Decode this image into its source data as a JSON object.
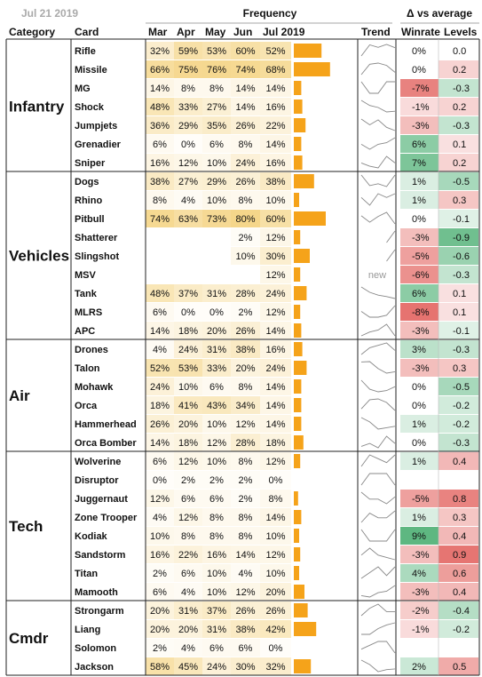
{
  "chart_data": {
    "type": "table",
    "date_label": "Jul 21 2019",
    "group_headers": {
      "frequency": "Frequency",
      "delta": "Δ vs average"
    },
    "columns": {
      "category": "Category",
      "card": "Card",
      "months": [
        "Mar",
        "Apr",
        "May",
        "Jun",
        "Jul 2019"
      ],
      "trend": "Trend",
      "winrate": "Winrate",
      "levels": "Levels"
    },
    "new_label": "new",
    "colors": {
      "bar": "#f5a31a",
      "freq_heat": "#f5d68a",
      "pos_delta": "#4caf73",
      "neg_delta": "#e0534f"
    },
    "groups": [
      {
        "category": "Infantry",
        "rows": [
          {
            "card": "Rifle",
            "freq": [
              "32%",
              "59%",
              "53%",
              "60%",
              "52%"
            ],
            "winrate": "0%",
            "levels": "0.0"
          },
          {
            "card": "Missile",
            "freq": [
              "66%",
              "75%",
              "76%",
              "74%",
              "68%"
            ],
            "winrate": "0%",
            "levels": "0.2"
          },
          {
            "card": "MG",
            "freq": [
              "14%",
              "8%",
              "8%",
              "14%",
              "14%"
            ],
            "winrate": "-7%",
            "levels": "-0.3"
          },
          {
            "card": "Shock",
            "freq": [
              "48%",
              "33%",
              "27%",
              "14%",
              "16%"
            ],
            "winrate": "-1%",
            "levels": "0.2"
          },
          {
            "card": "Jumpjets",
            "freq": [
              "36%",
              "29%",
              "35%",
              "26%",
              "22%"
            ],
            "winrate": "-3%",
            "levels": "-0.3"
          },
          {
            "card": "Grenadier",
            "freq": [
              "6%",
              "0%",
              "6%",
              "8%",
              "14%"
            ],
            "winrate": "6%",
            "levels": "0.1"
          },
          {
            "card": "Sniper",
            "freq": [
              "16%",
              "12%",
              "10%",
              "24%",
              "16%"
            ],
            "winrate": "7%",
            "levels": "0.2"
          }
        ]
      },
      {
        "category": "Vehicles",
        "rows": [
          {
            "card": "Dogs",
            "freq": [
              "38%",
              "27%",
              "29%",
              "26%",
              "38%"
            ],
            "winrate": "1%",
            "levels": "-0.5"
          },
          {
            "card": "Rhino",
            "freq": [
              "8%",
              "4%",
              "10%",
              "8%",
              "10%"
            ],
            "winrate": "1%",
            "levels": "0.3"
          },
          {
            "card": "Pitbull",
            "freq": [
              "74%",
              "63%",
              "73%",
              "80%",
              "60%"
            ],
            "winrate": "0%",
            "levels": "-0.1"
          },
          {
            "card": "Shatterer",
            "freq": [
              "",
              "",
              "",
              "2%",
              "12%"
            ],
            "winrate": "-3%",
            "levels": "-0.9"
          },
          {
            "card": "Slingshot",
            "freq": [
              "",
              "",
              "",
              "10%",
              "30%"
            ],
            "winrate": "-5%",
            "levels": "-0.6"
          },
          {
            "card": "MSV",
            "freq": [
              "",
              "",
              "",
              "",
              "12%"
            ],
            "winrate": "-6%",
            "levels": "-0.3",
            "is_new": true
          },
          {
            "card": "Tank",
            "freq": [
              "48%",
              "37%",
              "31%",
              "28%",
              "24%"
            ],
            "winrate": "6%",
            "levels": "0.1"
          },
          {
            "card": "MLRS",
            "freq": [
              "6%",
              "0%",
              "0%",
              "2%",
              "12%"
            ],
            "winrate": "-8%",
            "levels": "0.1"
          },
          {
            "card": "APC",
            "freq": [
              "14%",
              "18%",
              "20%",
              "26%",
              "14%"
            ],
            "winrate": "-3%",
            "levels": "-0.1"
          }
        ]
      },
      {
        "category": "Air",
        "rows": [
          {
            "card": "Drones",
            "freq": [
              "4%",
              "24%",
              "31%",
              "38%",
              "16%"
            ],
            "winrate": "3%",
            "levels": "-0.3"
          },
          {
            "card": "Talon",
            "freq": [
              "52%",
              "53%",
              "33%",
              "20%",
              "24%"
            ],
            "winrate": "-3%",
            "levels": "0.3"
          },
          {
            "card": "Mohawk",
            "freq": [
              "24%",
              "10%",
              "6%",
              "8%",
              "14%"
            ],
            "winrate": "0%",
            "levels": "-0.5"
          },
          {
            "card": "Orca",
            "freq": [
              "18%",
              "41%",
              "43%",
              "34%",
              "14%"
            ],
            "winrate": "0%",
            "levels": "-0.2"
          },
          {
            "card": "Hammerhead",
            "freq": [
              "26%",
              "20%",
              "10%",
              "12%",
              "14%"
            ],
            "winrate": "1%",
            "levels": "-0.2"
          },
          {
            "card": "Orca Bomber",
            "freq": [
              "14%",
              "18%",
              "12%",
              "28%",
              "18%"
            ],
            "winrate": "0%",
            "levels": "-0.3"
          }
        ]
      },
      {
        "category": "Tech",
        "rows": [
          {
            "card": "Wolverine",
            "freq": [
              "6%",
              "12%",
              "10%",
              "8%",
              "12%"
            ],
            "winrate": "1%",
            "levels": "0.4"
          },
          {
            "card": "Disruptor",
            "freq": [
              "0%",
              "2%",
              "2%",
              "2%",
              "0%"
            ],
            "winrate": "",
            "levels": ""
          },
          {
            "card": "Juggernaut",
            "freq": [
              "12%",
              "6%",
              "6%",
              "2%",
              "8%"
            ],
            "winrate": "-5%",
            "levels": "0.8"
          },
          {
            "card": "Zone Trooper",
            "freq": [
              "4%",
              "12%",
              "8%",
              "8%",
              "14%"
            ],
            "winrate": "1%",
            "levels": "0.3"
          },
          {
            "card": "Kodiak",
            "freq": [
              "10%",
              "8%",
              "8%",
              "8%",
              "10%"
            ],
            "winrate": "9%",
            "levels": "0.4"
          },
          {
            "card": "Sandstorm",
            "freq": [
              "16%",
              "22%",
              "16%",
              "14%",
              "12%"
            ],
            "winrate": "-3%",
            "levels": "0.9"
          },
          {
            "card": "Titan",
            "freq": [
              "2%",
              "6%",
              "10%",
              "4%",
              "10%"
            ],
            "winrate": "4%",
            "levels": "0.6"
          },
          {
            "card": "Mamooth",
            "freq": [
              "6%",
              "4%",
              "10%",
              "12%",
              "20%"
            ],
            "winrate": "-3%",
            "levels": "0.4"
          }
        ]
      },
      {
        "category": "Cmdr",
        "rows": [
          {
            "card": "Strongarm",
            "freq": [
              "20%",
              "31%",
              "37%",
              "26%",
              "26%"
            ],
            "winrate": "-2%",
            "levels": "-0.4"
          },
          {
            "card": "Liang",
            "freq": [
              "20%",
              "20%",
              "31%",
              "38%",
              "42%"
            ],
            "winrate": "-1%",
            "levels": "-0.2"
          },
          {
            "card": "Solomon",
            "freq": [
              "2%",
              "4%",
              "6%",
              "6%",
              "0%"
            ],
            "winrate": "",
            "levels": ""
          },
          {
            "card": "Jackson",
            "freq": [
              "58%",
              "45%",
              "24%",
              "30%",
              "32%"
            ],
            "winrate": "2%",
            "levels": "0.5"
          }
        ]
      }
    ]
  }
}
